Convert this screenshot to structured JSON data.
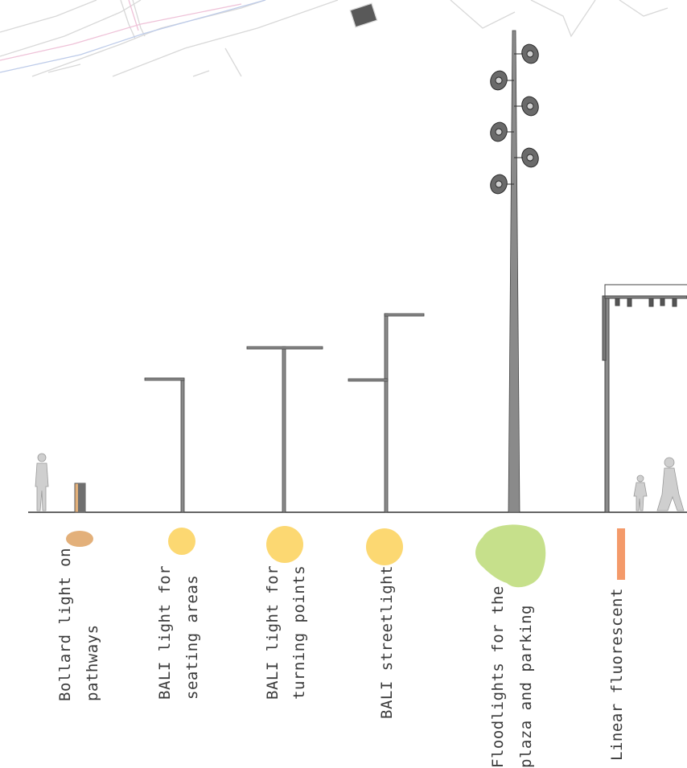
{
  "colors": {
    "bollard": "#e3b07a",
    "bali": "#fcd872",
    "floodlight": "#c6e08b",
    "fluorescent": "#f49a6a",
    "pole": "#7a7a7a",
    "ground": "#333333",
    "map_lines": "#bdbdbd",
    "map_pink": "#e6a2c4",
    "map_blue": "#9ab0de"
  },
  "fixtures": [
    {
      "id": "bollard",
      "line1": "Bollard light on",
      "line2": "pathways",
      "swatch": "ellipse"
    },
    {
      "id": "bali-seating",
      "line1": "BALI light for",
      "line2": "seating areas",
      "swatch": "circle"
    },
    {
      "id": "bali-turning",
      "line1": "BALI light for",
      "line2": "turning points",
      "swatch": "circle"
    },
    {
      "id": "bali-street",
      "line1": "BALI streetlight",
      "line2": "",
      "swatch": "circle"
    },
    {
      "id": "floodlights",
      "line1": "Floodlights for the",
      "line2": "plaza and parking",
      "swatch": "blob"
    },
    {
      "id": "fluorescent",
      "line1": "Linear fluorescent",
      "line2": "",
      "swatch": "bar"
    }
  ]
}
